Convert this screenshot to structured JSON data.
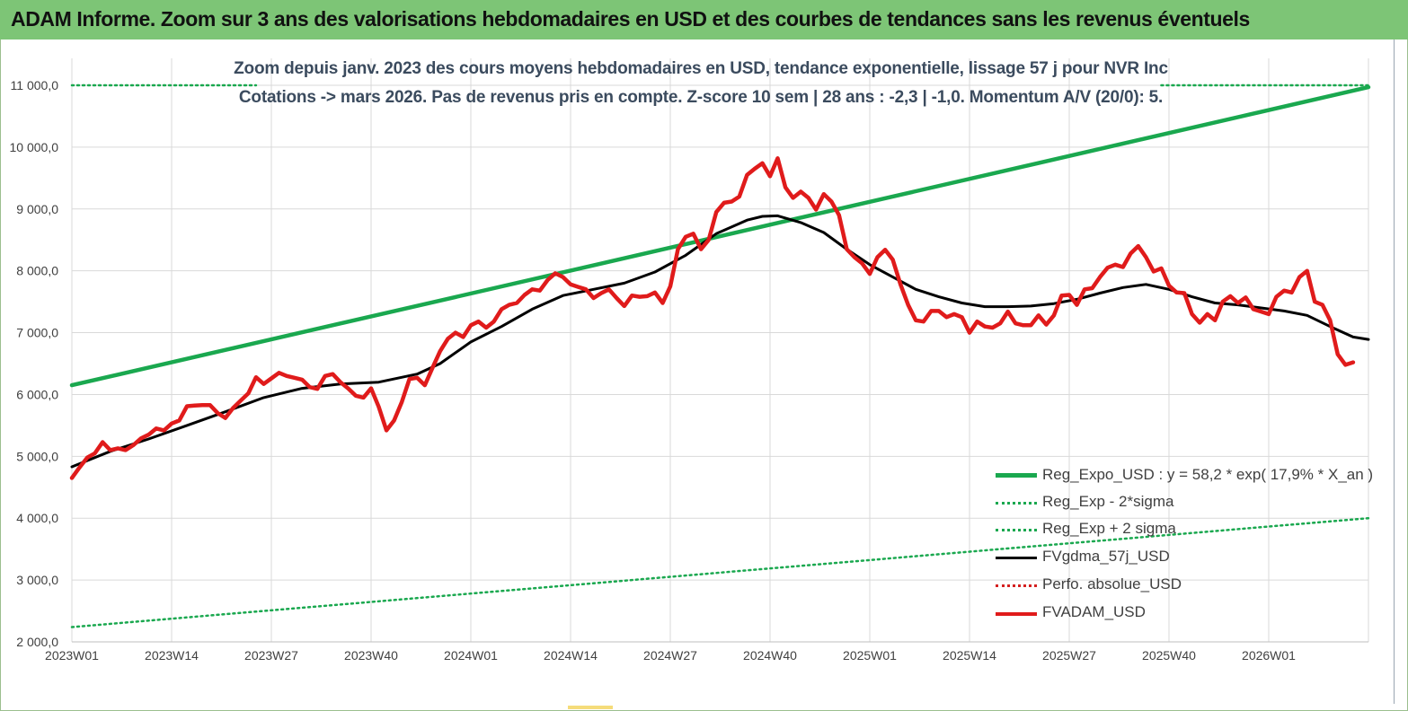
{
  "header": {
    "title": "ADAM Informe. Zoom sur 3 ans des valorisations hebdomadaires en USD et des courbes de tendances sans les revenus éventuels"
  },
  "colors": {
    "header_bg": "#7dc576",
    "trend": "#1aa84f",
    "sigma": "#1aa84f",
    "smooth": "#000000",
    "perf": "#d42020",
    "price": "#e01b1b",
    "grid": "#d9d9d9"
  },
  "chart_data": {
    "type": "line",
    "subtitle_line1": "Zoom depuis janv. 2023 des cours moyens hebdomadaires en USD, tendance exponentielle, lissage 57 j pour NVR Inc",
    "subtitle_line2": "Cotations -> mars 2026. Pas de revenus pris en  compte. Z-score 10 sem  | 28 ans : -2,3 | -1,0. Momentum A/V (20/0): 5.",
    "ylim": [
      2000,
      11000
    ],
    "y_ticks": [
      2000,
      3000,
      4000,
      5000,
      6000,
      7000,
      8000,
      9000,
      10000,
      11000
    ],
    "y_tick_labels": [
      "2 000,0",
      "3 000,0",
      "4 000,0",
      "5 000,0",
      "6 000,0",
      "7 000,0",
      "8 000,0",
      "9 000,0",
      "10 000,0",
      "11 000,0"
    ],
    "x_ticks": [
      {
        "week_index": 0,
        "label": "2023W01"
      },
      {
        "week_index": 13,
        "label": "2023W14"
      },
      {
        "week_index": 26,
        "label": "2023W27"
      },
      {
        "week_index": 39,
        "label": "2023W40"
      },
      {
        "week_index": 52,
        "label": "2024W01"
      },
      {
        "week_index": 65,
        "label": "2024W14"
      },
      {
        "week_index": 78,
        "label": "2024W27"
      },
      {
        "week_index": 91,
        "label": "2024W40"
      },
      {
        "week_index": 104,
        "label": "2025W01"
      },
      {
        "week_index": 117,
        "label": "2025W14"
      },
      {
        "week_index": 130,
        "label": "2025W27"
      },
      {
        "week_index": 143,
        "label": "2025W40"
      },
      {
        "week_index": 156,
        "label": "2026W01"
      }
    ],
    "x_last_week_index": 169,
    "series": [
      {
        "name": "Reg_Expo_USD : y = 58,2 * exp( 17,9% * X_an )",
        "style": "solid-thick",
        "color": "#1aa84f",
        "points": [
          [
            0,
            6150
          ],
          [
            169,
            10970
          ]
        ]
      },
      {
        "name": "Reg_Exp - 2*sigma",
        "style": "dotted",
        "color": "#1aa84f",
        "points": [
          [
            0,
            2240
          ],
          [
            169,
            4000
          ]
        ]
      },
      {
        "name": "Reg_Exp + 2 sigma",
        "style": "dotted",
        "color": "#1aa84f",
        "points": [
          [
            0,
            11000
          ],
          [
            24,
            11000
          ],
          [
            142,
            11000
          ],
          [
            169,
            11000
          ]
        ]
      },
      {
        "name": "FVgdma_57j_USD",
        "style": "solid",
        "color": "#000000",
        "points": [
          [
            0,
            4830
          ],
          [
            5,
            5080
          ],
          [
            10,
            5280
          ],
          [
            15,
            5500
          ],
          [
            20,
            5720
          ],
          [
            25,
            5950
          ],
          [
            30,
            6100
          ],
          [
            35,
            6170
          ],
          [
            40,
            6200
          ],
          [
            45,
            6330
          ],
          [
            48,
            6500
          ],
          [
            52,
            6850
          ],
          [
            56,
            7100
          ],
          [
            60,
            7380
          ],
          [
            64,
            7600
          ],
          [
            68,
            7700
          ],
          [
            72,
            7800
          ],
          [
            76,
            7980
          ],
          [
            80,
            8250
          ],
          [
            84,
            8600
          ],
          [
            88,
            8820
          ],
          [
            90,
            8880
          ],
          [
            92,
            8890
          ],
          [
            95,
            8780
          ],
          [
            98,
            8620
          ],
          [
            101,
            8350
          ],
          [
            104,
            8100
          ],
          [
            107,
            7900
          ],
          [
            110,
            7700
          ],
          [
            113,
            7580
          ],
          [
            116,
            7480
          ],
          [
            119,
            7420
          ],
          [
            122,
            7420
          ],
          [
            125,
            7430
          ],
          [
            128,
            7470
          ],
          [
            131,
            7540
          ],
          [
            134,
            7640
          ],
          [
            137,
            7730
          ],
          [
            140,
            7780
          ],
          [
            143,
            7700
          ],
          [
            146,
            7580
          ],
          [
            149,
            7480
          ],
          [
            152,
            7450
          ],
          [
            155,
            7400
          ],
          [
            158,
            7350
          ],
          [
            161,
            7280
          ],
          [
            164,
            7100
          ],
          [
            167,
            6930
          ],
          [
            169,
            6890
          ]
        ]
      },
      {
        "name": "Perfo. absolue_USD",
        "style": "dotted",
        "color": "#d42020",
        "points": []
      },
      {
        "name": "FVADAM_USD",
        "style": "solid-thick",
        "color": "#e01b1b",
        "points": [
          [
            0,
            4650
          ],
          [
            1,
            4820
          ],
          [
            2,
            4980
          ],
          [
            3,
            5050
          ],
          [
            4,
            5230
          ],
          [
            5,
            5100
          ],
          [
            6,
            5130
          ],
          [
            7,
            5100
          ],
          [
            8,
            5180
          ],
          [
            9,
            5290
          ],
          [
            10,
            5350
          ],
          [
            11,
            5450
          ],
          [
            12,
            5420
          ],
          [
            13,
            5530
          ],
          [
            14,
            5580
          ],
          [
            15,
            5810
          ],
          [
            16,
            5820
          ],
          [
            17,
            5830
          ],
          [
            18,
            5830
          ],
          [
            19,
            5700
          ],
          [
            20,
            5620
          ],
          [
            21,
            5780
          ],
          [
            22,
            5900
          ],
          [
            23,
            6020
          ],
          [
            24,
            6280
          ],
          [
            25,
            6170
          ],
          [
            26,
            6260
          ],
          [
            27,
            6350
          ],
          [
            28,
            6300
          ],
          [
            29,
            6270
          ],
          [
            30,
            6240
          ],
          [
            31,
            6120
          ],
          [
            32,
            6090
          ],
          [
            33,
            6300
          ],
          [
            34,
            6330
          ],
          [
            35,
            6200
          ],
          [
            36,
            6100
          ],
          [
            37,
            5980
          ],
          [
            38,
            5950
          ],
          [
            39,
            6100
          ],
          [
            40,
            5800
          ],
          [
            41,
            5420
          ],
          [
            42,
            5580
          ],
          [
            43,
            5880
          ],
          [
            44,
            6250
          ],
          [
            45,
            6270
          ],
          [
            46,
            6150
          ],
          [
            47,
            6430
          ],
          [
            48,
            6700
          ],
          [
            49,
            6900
          ],
          [
            50,
            7000
          ],
          [
            51,
            6930
          ],
          [
            52,
            7120
          ],
          [
            53,
            7180
          ],
          [
            54,
            7080
          ],
          [
            55,
            7180
          ],
          [
            56,
            7380
          ],
          [
            57,
            7450
          ],
          [
            58,
            7480
          ],
          [
            59,
            7610
          ],
          [
            60,
            7700
          ],
          [
            61,
            7680
          ],
          [
            62,
            7850
          ],
          [
            63,
            7960
          ],
          [
            64,
            7900
          ],
          [
            65,
            7780
          ],
          [
            66,
            7740
          ],
          [
            67,
            7700
          ],
          [
            68,
            7560
          ],
          [
            69,
            7640
          ],
          [
            70,
            7700
          ],
          [
            71,
            7560
          ],
          [
            72,
            7430
          ],
          [
            73,
            7600
          ],
          [
            74,
            7580
          ],
          [
            75,
            7590
          ],
          [
            76,
            7650
          ],
          [
            77,
            7480
          ],
          [
            78,
            7750
          ],
          [
            79,
            8350
          ],
          [
            80,
            8550
          ],
          [
            81,
            8600
          ],
          [
            82,
            8350
          ],
          [
            83,
            8500
          ],
          [
            84,
            8950
          ],
          [
            85,
            9100
          ],
          [
            86,
            9120
          ],
          [
            87,
            9200
          ],
          [
            88,
            9550
          ],
          [
            89,
            9650
          ],
          [
            90,
            9740
          ],
          [
            91,
            9530
          ],
          [
            92,
            9820
          ],
          [
            93,
            9350
          ],
          [
            94,
            9180
          ],
          [
            95,
            9280
          ],
          [
            96,
            9180
          ],
          [
            97,
            8990
          ],
          [
            98,
            9240
          ],
          [
            99,
            9120
          ],
          [
            100,
            8900
          ],
          [
            101,
            8350
          ],
          [
            102,
            8220
          ],
          [
            103,
            8120
          ],
          [
            104,
            7950
          ],
          [
            105,
            8220
          ],
          [
            106,
            8340
          ],
          [
            107,
            8180
          ],
          [
            108,
            7780
          ],
          [
            109,
            7450
          ],
          [
            110,
            7200
          ],
          [
            111,
            7180
          ],
          [
            112,
            7350
          ],
          [
            113,
            7350
          ],
          [
            114,
            7250
          ],
          [
            115,
            7300
          ],
          [
            116,
            7250
          ],
          [
            117,
            7000
          ],
          [
            118,
            7180
          ],
          [
            119,
            7100
          ],
          [
            120,
            7080
          ],
          [
            121,
            7150
          ],
          [
            122,
            7340
          ],
          [
            123,
            7150
          ],
          [
            124,
            7120
          ],
          [
            125,
            7120
          ],
          [
            126,
            7280
          ],
          [
            127,
            7130
          ],
          [
            128,
            7280
          ],
          [
            129,
            7600
          ],
          [
            130,
            7610
          ],
          [
            131,
            7450
          ],
          [
            132,
            7700
          ],
          [
            133,
            7720
          ],
          [
            134,
            7900
          ],
          [
            135,
            8050
          ],
          [
            136,
            8100
          ],
          [
            137,
            8060
          ],
          [
            138,
            8280
          ],
          [
            139,
            8400
          ],
          [
            140,
            8220
          ],
          [
            141,
            7990
          ],
          [
            142,
            8040
          ],
          [
            143,
            7760
          ],
          [
            144,
            7650
          ],
          [
            145,
            7640
          ],
          [
            146,
            7300
          ],
          [
            147,
            7160
          ],
          [
            148,
            7300
          ],
          [
            149,
            7200
          ],
          [
            150,
            7500
          ],
          [
            151,
            7590
          ],
          [
            152,
            7480
          ],
          [
            153,
            7570
          ],
          [
            154,
            7380
          ],
          [
            155,
            7340
          ],
          [
            156,
            7300
          ],
          [
            157,
            7580
          ],
          [
            158,
            7680
          ],
          [
            159,
            7650
          ],
          [
            160,
            7900
          ],
          [
            161,
            8000
          ],
          [
            162,
            7500
          ],
          [
            163,
            7450
          ],
          [
            164,
            7200
          ],
          [
            165,
            6650
          ],
          [
            166,
            6480
          ],
          [
            167,
            6520
          ]
        ]
      }
    ],
    "legend_position": "bottom-right"
  }
}
